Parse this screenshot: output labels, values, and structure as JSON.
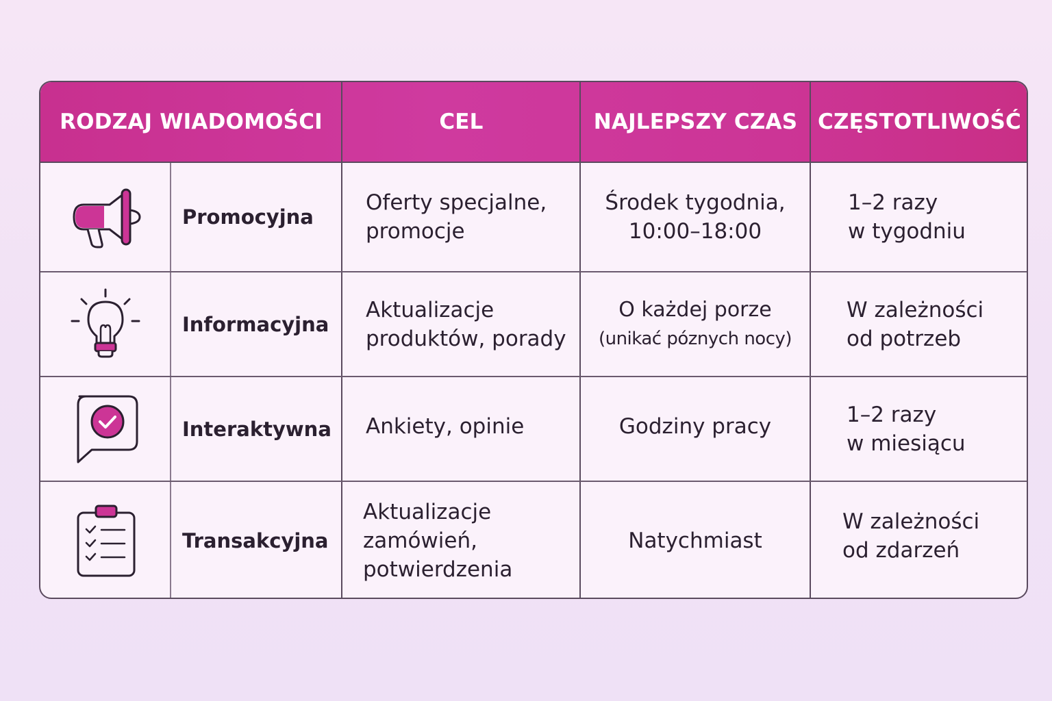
{
  "headers": [
    "RODZAJ WIADOMOŚCI",
    "CEL",
    "NAJLEPSZY CZAS",
    "CZĘSTOTLIWOŚĆ"
  ],
  "rows": [
    {
      "icon": "megaphone-icon",
      "type": "Promocyjna",
      "goal": [
        "Oferty specjalne,",
        "promocje"
      ],
      "time": [
        "Środek tygodnia,",
        "10:00–18:00"
      ],
      "frequency": [
        "1–2 razy",
        "w tygodniu"
      ]
    },
    {
      "icon": "lightbulb-icon",
      "type": "Informacyjna",
      "goal": [
        "Aktualizacje",
        "produktów, porady"
      ],
      "time": [
        "O każdej porze",
        "(unikać póznych nocy)"
      ],
      "frequency": [
        "W zależności",
        "od potrzeb"
      ]
    },
    {
      "icon": "chat-check-icon",
      "type": "Interaktywna",
      "goal": [
        "Ankiety, opinie"
      ],
      "time": [
        "Godziny pracy"
      ],
      "frequency": [
        "1–2 razy",
        "w miesiącu"
      ]
    },
    {
      "icon": "clipboard-checklist-icon",
      "type": "Transakcyjna",
      "goal": [
        "Aktualizacje",
        "zamówień,",
        "potwierdzenia"
      ],
      "time": [
        "Natychmiast"
      ],
      "frequency": [
        "W zależności",
        "od zdarzeń"
      ]
    }
  ],
  "colors": {
    "accent": "#cc3596",
    "border": "#5a4a5e",
    "text": "#2b2030"
  }
}
